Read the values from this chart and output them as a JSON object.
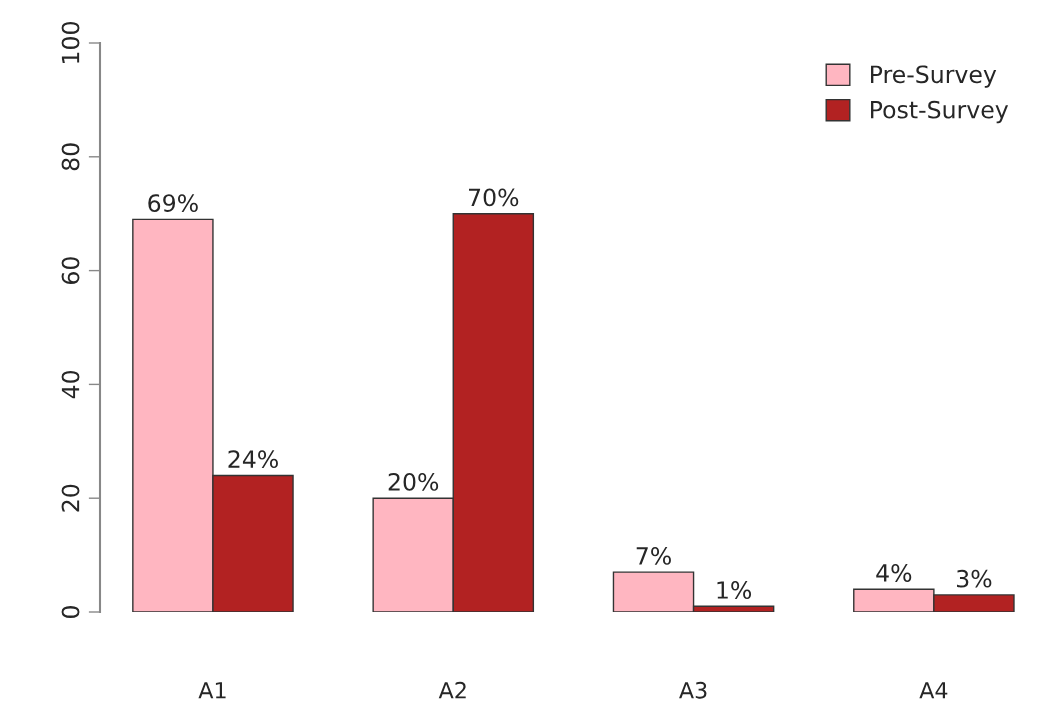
{
  "chart_data": {
    "type": "bar",
    "categories": [
      "A1",
      "A2",
      "A3",
      "A4"
    ],
    "series": [
      {
        "name": "Pre-Survey",
        "color": "#ffb6c1",
        "values": [
          69,
          20,
          7,
          4
        ],
        "value_labels": [
          "69%",
          "20%",
          "7%",
          "4%"
        ]
      },
      {
        "name": "Post-Survey",
        "color": "#b22222",
        "values": [
          24,
          70,
          1,
          3
        ],
        "value_labels": [
          "24%",
          "70%",
          "1%",
          "3%"
        ]
      }
    ],
    "ylim": [
      0,
      100
    ],
    "yticks": [
      0,
      20,
      40,
      60,
      80,
      100
    ],
    "grid": false,
    "legend": "top right"
  }
}
